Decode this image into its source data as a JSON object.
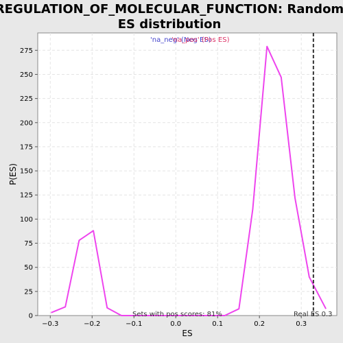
{
  "chart_data": {
    "type": "line",
    "title_line1": "REGULATION_OF_MOLECULAR_FUNCTION: Random",
    "title_line2": "ES distribution",
    "xlabel": "ES",
    "ylabel": "P(ES)",
    "xlim": [
      -0.33,
      0.385
    ],
    "ylim": [
      0,
      293
    ],
    "x_ticks": [
      -0.3,
      -0.2,
      -0.1,
      0.0,
      0.1,
      0.2,
      0.3
    ],
    "x_tick_labels": [
      "−0.3",
      "−0.2",
      "−0.1",
      "0.0",
      "0.1",
      "0.2",
      "0.3"
    ],
    "y_ticks": [
      0,
      25,
      50,
      75,
      100,
      125,
      150,
      175,
      200,
      225,
      250,
      275
    ],
    "y_tick_labels": [
      "0",
      "25",
      "50",
      "75",
      "100",
      "125",
      "150",
      "175",
      "200",
      "225",
      "250",
      "275"
    ],
    "grid": true,
    "series": [
      {
        "name": "",
        "color": "#ee44ee",
        "x": [
          -0.298,
          -0.264,
          -0.231,
          -0.197,
          -0.164,
          -0.13,
          -0.097,
          -0.063,
          -0.03,
          0.004,
          0.037,
          0.071,
          0.104,
          0.117,
          0.151,
          0.184,
          0.218,
          0.252,
          0.285,
          0.319,
          0.359
        ],
        "y": [
          3,
          9,
          78,
          88,
          8,
          0,
          0,
          0,
          0,
          0,
          0,
          0,
          0,
          0,
          7,
          110,
          279,
          247,
          122,
          40,
          7
        ]
      }
    ],
    "legend": {
      "placement": "top-center",
      "neg_label": "'na_neg' (Neg ES)",
      "pos_label": "'na_pos' (Pos ES)",
      "neg_color": "#4444cc",
      "pos_color": "#dd3366"
    },
    "real_es": {
      "value": 0.329,
      "label": "Real ES 0.3"
    },
    "annotation": "Sets with pos scores: 81%"
  }
}
